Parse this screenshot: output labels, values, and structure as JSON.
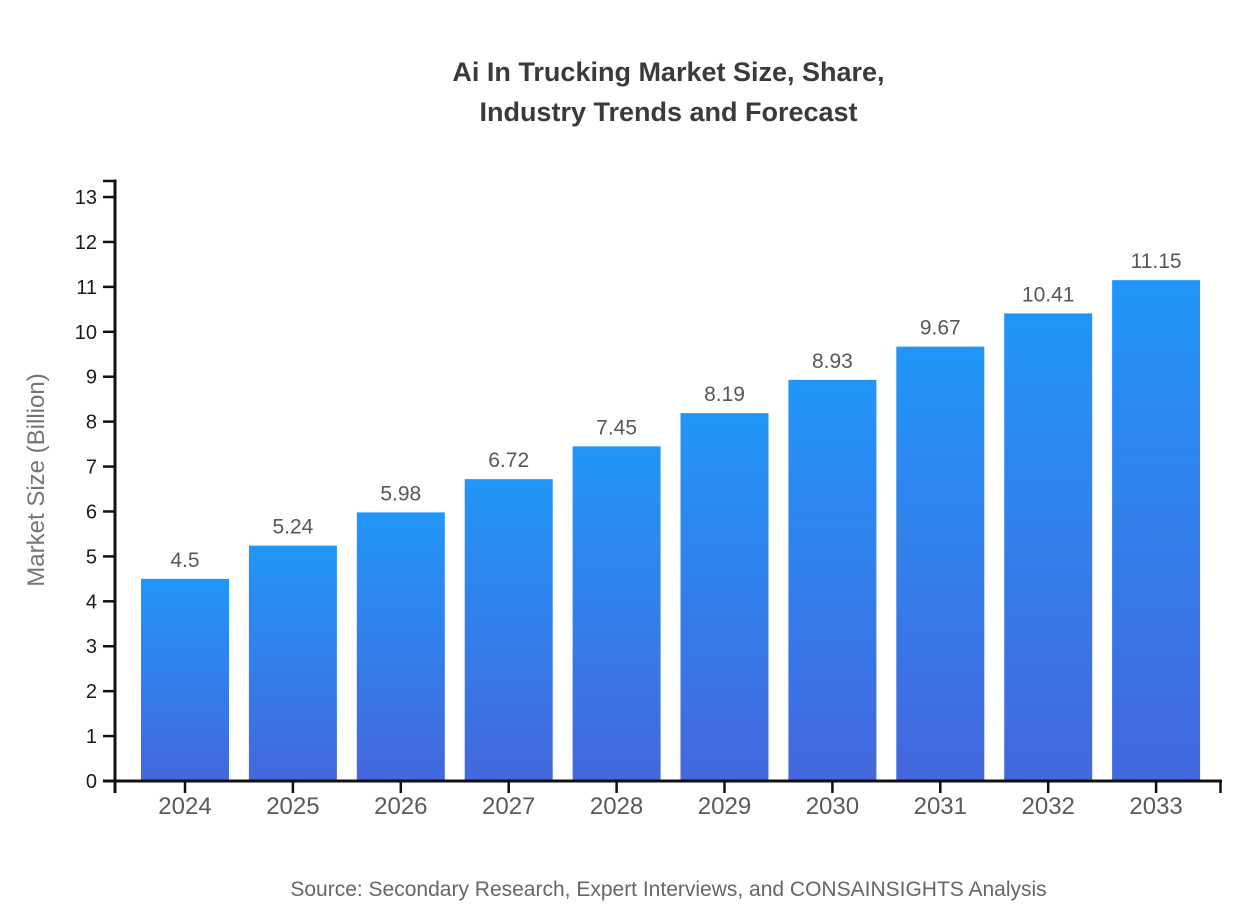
{
  "title": {
    "line1": "Ai In Trucking Market Size, Share,",
    "line2": "Industry Trends and Forecast"
  },
  "footer": {
    "source": "Source: Secondary Research, Expert Interviews, and CONSAINSIGHTS Analysis"
  },
  "chart_data": {
    "type": "bar",
    "title": "Ai In Trucking Market Size, Share, Industry Trends and Forecast",
    "categories": [
      "2024",
      "2025",
      "2026",
      "2027",
      "2028",
      "2029",
      "2030",
      "2031",
      "2032",
      "2033"
    ],
    "values": [
      4.5,
      5.24,
      5.98,
      6.72,
      7.45,
      8.19,
      8.93,
      9.67,
      10.41,
      11.15
    ],
    "value_labels": [
      "4.5",
      "5.24",
      "5.98",
      "6.72",
      "7.45",
      "8.19",
      "8.93",
      "9.67",
      "10.41",
      "11.15"
    ],
    "xlabel": "",
    "ylabel": "Market Size (Billion)",
    "ylim": [
      0,
      13
    ],
    "yticks": [
      0,
      1,
      2,
      3,
      4,
      5,
      6,
      7,
      8,
      9,
      10,
      11,
      12,
      13
    ],
    "grid": false,
    "legend": false,
    "bar_gradient": {
      "top": "#2196F8",
      "bottom": "#4467DD"
    },
    "axis_color": "#111111",
    "y_tick_label_color": "#1a1a1a",
    "x_tick_label_color": "#5a5a5a",
    "value_label_color": "#58585a",
    "title_color": "#3a3a3a",
    "source": "Source: Secondary Research, Expert Interviews, and CONSAINSIGHTS Analysis"
  }
}
